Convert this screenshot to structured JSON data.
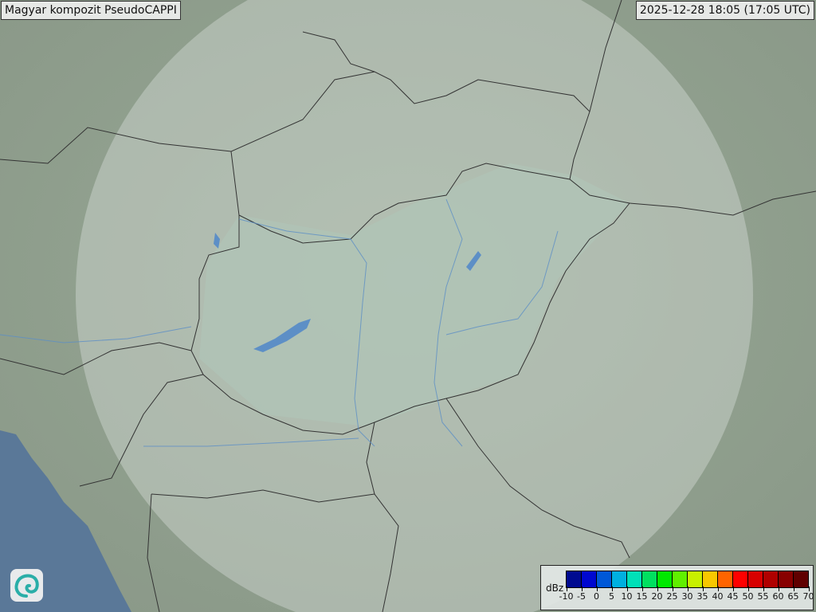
{
  "header": {
    "title": "Magyar kompozit  PseudoCAPPI",
    "timestamp": "2025-12-28 18:05 (17:05 UTC)"
  },
  "legend": {
    "unit": "dBz",
    "ticks": [
      "-10",
      "-5",
      "0",
      "5",
      "10",
      "15",
      "20",
      "25",
      "30",
      "35",
      "40",
      "45",
      "50",
      "55",
      "60",
      "65",
      "70"
    ],
    "colors": [
      "#000a90",
      "#0008d0",
      "#0058d8",
      "#00b0e0",
      "#00e0b8",
      "#00e060",
      "#00e800",
      "#60f000",
      "#c8f000",
      "#f8c800",
      "#ff6400",
      "#ff0000",
      "#d80000",
      "#b00000",
      "#880000",
      "#600000"
    ]
  },
  "map": {
    "terrain_color": "#8d9d8c",
    "sea_color": "#5a7898",
    "radar_coverage_color": "#dfe6e2",
    "border_color": "#333333",
    "river_color": "#5d8fc6",
    "precipitation": "none"
  },
  "logo": {
    "icon": "swirl-logo-icon"
  }
}
